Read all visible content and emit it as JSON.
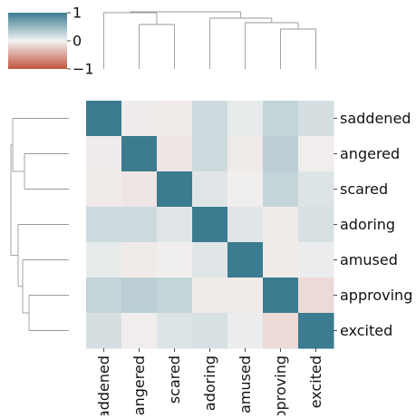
{
  "chart_data": {
    "type": "heatmap",
    "title": "",
    "xlabel": "",
    "ylabel": "",
    "labels": [
      "saddened",
      "angered",
      "scared",
      "adoring",
      "amused",
      "approving",
      "excited"
    ],
    "matrix": [
      [
        1.0,
        -0.04,
        -0.05,
        0.2,
        0.06,
        0.25,
        0.16
      ],
      [
        -0.04,
        1.0,
        -0.08,
        0.2,
        -0.05,
        0.3,
        -0.03
      ],
      [
        -0.05,
        -0.08,
        1.0,
        0.1,
        -0.02,
        0.25,
        0.12
      ],
      [
        0.2,
        0.2,
        0.1,
        1.0,
        0.1,
        -0.05,
        0.15
      ],
      [
        0.06,
        -0.05,
        -0.02,
        0.1,
        1.0,
        -0.05,
        0.04
      ],
      [
        0.25,
        0.3,
        0.25,
        -0.05,
        -0.05,
        1.0,
        -0.15
      ],
      [
        0.16,
        -0.03,
        0.12,
        0.15,
        0.04,
        -0.15,
        1.0
      ]
    ],
    "colorbar": {
      "min": -1,
      "max": 1,
      "ticks": [
        1,
        0,
        -1
      ],
      "tick_labels": [
        "1",
        "0",
        "−1"
      ],
      "low_color": "#c1553e",
      "mid_color": "#f2f2f2",
      "high_color": "#3b7c90"
    },
    "grid": false,
    "row_dendrogram": "left",
    "col_dendrogram": "top"
  }
}
